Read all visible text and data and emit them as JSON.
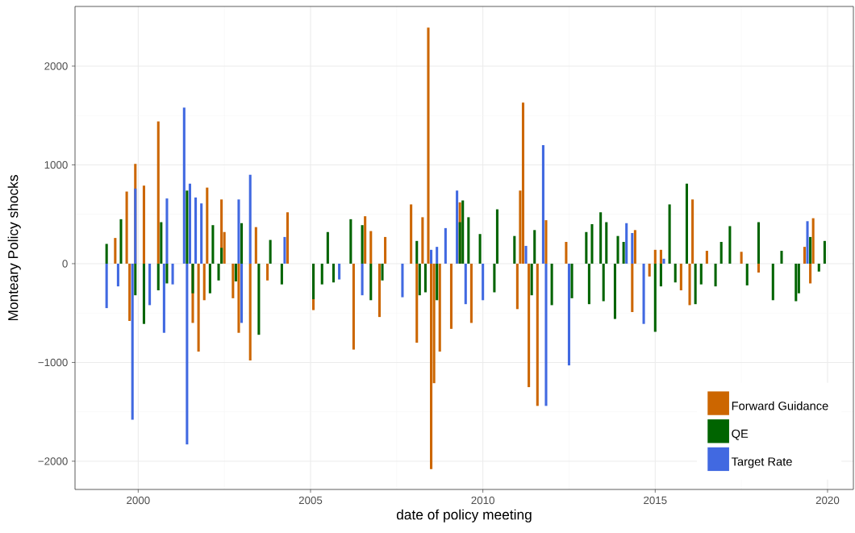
{
  "chart_data": {
    "type": "bar",
    "xlabel": "date of policy meeting",
    "ylabel": "Monteary Policy shocks",
    "xlim": [
      "1998-03",
      "2020-10"
    ],
    "xticks": [
      "2000",
      "2005",
      "2010",
      "2015",
      "2020"
    ],
    "ylim": [
      -2286,
      2604
    ],
    "yticks": [
      {
        "value": -2000,
        "label": "−2000"
      },
      {
        "value": -1000,
        "label": "−1000"
      },
      0,
      1000,
      2000
    ],
    "grid": true,
    "legend": "bottom right",
    "series": [
      {
        "name": "Forward Guidance",
        "color": "#cc6600",
        "x": [
          "1999-05",
          "1999-09",
          "1999-10",
          "1999-12",
          "2000-03",
          "2000-08",
          "2001-08",
          "2001-10",
          "2001-12",
          "2002-01",
          "2002-06",
          "2002-07",
          "2002-10",
          "2002-12",
          "2003-04",
          "2003-06",
          "2003-10",
          "2004-05",
          "2005-02",
          "2006-04",
          "2006-08",
          "2006-10",
          "2007-01",
          "2007-03",
          "2007-12",
          "2008-02",
          "2008-04",
          "2008-06",
          "2008-07",
          "2008-08",
          "2008-10",
          "2009-02",
          "2009-05",
          "2009-09",
          "2011-01",
          "2011-02",
          "2011-03",
          "2011-05",
          "2011-08",
          "2011-11",
          "2012-06",
          "2014-05",
          "2014-06",
          "2014-11",
          "2015-01",
          "2015-03",
          "2015-10",
          "2016-01",
          "2016-02",
          "2016-07",
          "2017-07",
          "2018-01",
          "2019-05",
          "2019-07",
          "2019-08"
        ],
        "values": [
          260,
          730,
          -580,
          1010,
          790,
          1440,
          -600,
          -890,
          -370,
          770,
          650,
          320,
          -350,
          -700,
          -980,
          370,
          -170,
          520,
          -470,
          -870,
          480,
          330,
          -540,
          270,
          600,
          -800,
          470,
          2390,
          -2080,
          -1210,
          -890,
          -660,
          620,
          -600,
          -460,
          740,
          1630,
          -1250,
          -1440,
          440,
          220,
          -490,
          340,
          -130,
          140,
          140,
          -270,
          -420,
          650,
          130,
          120,
          -90,
          170,
          -200,
          460
        ]
      },
      {
        "name": "QE",
        "color": "#006400",
        "x": [
          "1999-02",
          "1999-07",
          "1999-12",
          "2000-03",
          "2000-08",
          "2000-09",
          "2000-11",
          "2001-06",
          "2001-08",
          "2002-02",
          "2002-03",
          "2002-05",
          "2002-06",
          "2002-11",
          "2003-01",
          "2003-07",
          "2003-11",
          "2004-03",
          "2005-02",
          "2005-05",
          "2005-07",
          "2005-09",
          "2006-03",
          "2006-07",
          "2006-10",
          "2007-02",
          "2008-02",
          "2008-03",
          "2008-05",
          "2008-09",
          "2009-05",
          "2009-06",
          "2009-08",
          "2009-12",
          "2010-05",
          "2010-06",
          "2010-12",
          "2011-06",
          "2011-07",
          "2012-01",
          "2012-08",
          "2013-01",
          "2013-02",
          "2013-03",
          "2013-06",
          "2013-07",
          "2013-08",
          "2013-11",
          "2013-12",
          "2014-02",
          "2015-01",
          "2015-03",
          "2015-06",
          "2015-08",
          "2015-12",
          "2016-03",
          "2016-05",
          "2016-10",
          "2016-12",
          "2017-03",
          "2017-09",
          "2018-01",
          "2018-06",
          "2018-09",
          "2019-02",
          "2019-03",
          "2019-07",
          "2019-10",
          "2019-12"
        ],
        "values": [
          200,
          450,
          -320,
          -610,
          -270,
          420,
          -200,
          740,
          -300,
          -300,
          390,
          -170,
          160,
          -180,
          410,
          -720,
          240,
          -210,
          -360,
          -210,
          320,
          -190,
          450,
          390,
          -370,
          -170,
          230,
          -320,
          -290,
          -370,
          420,
          640,
          470,
          300,
          -290,
          550,
          280,
          -320,
          340,
          -420,
          -350,
          320,
          -410,
          400,
          520,
          -380,
          420,
          -560,
          280,
          220,
          -690,
          -230,
          600,
          -190,
          810,
          -410,
          -210,
          -230,
          220,
          380,
          -220,
          420,
          -370,
          130,
          -380,
          -300,
          270,
          -80,
          230
        ]
      },
      {
        "name": "Target Rate",
        "color": "#4169e1",
        "x": [
          "1999-02",
          "1999-06",
          "1999-11",
          "1999-12",
          "2000-05",
          "2000-10",
          "2000-11",
          "2001-01",
          "2001-05",
          "2001-06",
          "2001-07",
          "2001-09",
          "2001-11",
          "2002-12",
          "2003-01",
          "2003-04",
          "2004-04",
          "2005-11",
          "2006-07",
          "2007-09",
          "2008-07",
          "2008-09",
          "2008-12",
          "2009-04",
          "2009-07",
          "2010-01",
          "2011-04",
          "2011-10",
          "2011-11",
          "2012-07",
          "2014-03",
          "2014-05",
          "2014-09",
          "2015-04",
          "2019-06"
        ],
        "values": [
          -450,
          -230,
          -1580,
          760,
          -420,
          -700,
          660,
          -210,
          1580,
          -1830,
          810,
          670,
          610,
          650,
          -600,
          900,
          270,
          -160,
          -320,
          -340,
          140,
          170,
          360,
          740,
          -410,
          -370,
          180,
          1200,
          -1440,
          -1030,
          410,
          310,
          -610,
          50,
          430
        ]
      }
    ]
  }
}
